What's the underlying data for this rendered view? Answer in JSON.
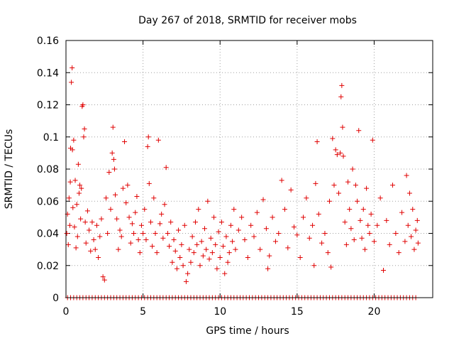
{
  "chart_data": {
    "type": "scatter",
    "title": "Day 267 of 2018, SRMTID for receiver mobs",
    "xlabel": "GPS time / hours",
    "ylabel": "SRMTID / TECUs",
    "xlim": [
      0,
      23.8
    ],
    "ylim": [
      0,
      0.16
    ],
    "grid": true,
    "marker": "+",
    "x_ticks": [
      0,
      5,
      10,
      15,
      20
    ],
    "x_tick_labels": [
      "0",
      "5",
      "10",
      "15",
      "20"
    ],
    "y_ticks": [
      0,
      0.02,
      0.04,
      0.06,
      0.08,
      0.1,
      0.12,
      0.14,
      0.16
    ],
    "y_tick_labels": [
      "0",
      "0.02",
      "0.04",
      "0.06",
      "0.08",
      "0.1",
      "0.12",
      "0.14",
      "0.16"
    ],
    "series": [
      {
        "name": "SRMTID",
        "color": "#e00000",
        "points": [
          [
            0.05,
            0.04
          ],
          [
            0.1,
            0.052
          ],
          [
            0.15,
            0.033
          ],
          [
            0.2,
            0.062
          ],
          [
            0.25,
            0.045
          ],
          [
            0.28,
            0.072
          ],
          [
            0.3,
            0.093
          ],
          [
            0.35,
            0.134
          ],
          [
            0.4,
            0.143
          ],
          [
            0.42,
            0.092
          ],
          [
            0.45,
            0.056
          ],
          [
            0.5,
            0.098
          ],
          [
            0.55,
            0.044
          ],
          [
            0.6,
            0.073
          ],
          [
            0.65,
            0.031
          ],
          [
            0.7,
            0.058
          ],
          [
            0.75,
            0.038
          ],
          [
            0.8,
            0.083
          ],
          [
            0.85,
            0.065
          ],
          [
            0.9,
            0.07
          ],
          [
            0.95,
            0.049
          ],
          [
            1.0,
            0.068
          ],
          [
            1.05,
            0.119
          ],
          [
            1.1,
            0.12
          ],
          [
            1.15,
            0.1
          ],
          [
            1.2,
            0.105
          ],
          [
            1.25,
            0.047
          ],
          [
            1.3,
            0.034
          ],
          [
            1.4,
            0.054
          ],
          [
            1.5,
            0.042
          ],
          [
            1.6,
            0.029
          ],
          [
            1.7,
            0.047
          ],
          [
            1.8,
            0.036
          ],
          [
            1.9,
            0.03
          ],
          [
            2.0,
            0.045
          ],
          [
            2.1,
            0.025
          ],
          [
            2.2,
            0.038
          ],
          [
            2.3,
            0.049
          ],
          [
            2.4,
            0.013
          ],
          [
            2.5,
            0.011
          ],
          [
            2.6,
            0.062
          ],
          [
            2.7,
            0.04
          ],
          [
            2.8,
            0.078
          ],
          [
            2.9,
            0.055
          ],
          [
            3.0,
            0.09
          ],
          [
            3.05,
            0.106
          ],
          [
            3.1,
            0.086
          ],
          [
            3.15,
            0.08
          ],
          [
            3.2,
            0.064
          ],
          [
            3.3,
            0.049
          ],
          [
            3.4,
            0.03
          ],
          [
            3.5,
            0.042
          ],
          [
            3.6,
            0.038
          ],
          [
            3.7,
            0.068
          ],
          [
            3.8,
            0.097
          ],
          [
            3.9,
            0.059
          ],
          [
            4.0,
            0.07
          ],
          [
            4.1,
            0.05
          ],
          [
            4.2,
            0.034
          ],
          [
            4.3,
            0.046
          ],
          [
            4.4,
            0.04
          ],
          [
            4.5,
            0.053
          ],
          [
            4.6,
            0.063
          ],
          [
            4.7,
            0.036
          ],
          [
            4.8,
            0.028
          ],
          [
            4.9,
            0.045
          ],
          [
            5.0,
            0.04
          ],
          [
            5.1,
            0.055
          ],
          [
            5.2,
            0.036
          ],
          [
            5.3,
            0.094
          ],
          [
            5.35,
            0.1
          ],
          [
            5.4,
            0.071
          ],
          [
            5.5,
            0.047
          ],
          [
            5.6,
            0.032
          ],
          [
            5.7,
            0.062
          ],
          [
            5.8,
            0.04
          ],
          [
            5.9,
            0.028
          ],
          [
            6.0,
            0.098
          ],
          [
            6.1,
            0.046
          ],
          [
            6.2,
            0.052
          ],
          [
            6.3,
            0.037
          ],
          [
            6.4,
            0.058
          ],
          [
            6.5,
            0.081
          ],
          [
            6.6,
            0.04
          ],
          [
            6.7,
            0.032
          ],
          [
            6.8,
            0.047
          ],
          [
            6.9,
            0.022
          ],
          [
            7.0,
            0.036
          ],
          [
            7.1,
            0.029
          ],
          [
            7.2,
            0.018
          ],
          [
            7.3,
            0.042
          ],
          [
            7.4,
            0.025
          ],
          [
            7.5,
            0.033
          ],
          [
            7.6,
            0.02
          ],
          [
            7.7,
            0.045
          ],
          [
            7.8,
            0.01
          ],
          [
            7.9,
            0.015
          ],
          [
            8.0,
            0.03
          ],
          [
            8.1,
            0.022
          ],
          [
            8.2,
            0.038
          ],
          [
            8.3,
            0.028
          ],
          [
            8.4,
            0.047
          ],
          [
            8.5,
            0.033
          ],
          [
            8.6,
            0.055
          ],
          [
            8.7,
            0.02
          ],
          [
            8.8,
            0.035
          ],
          [
            8.9,
            0.026
          ],
          [
            9.0,
            0.043
          ],
          [
            9.1,
            0.03
          ],
          [
            9.2,
            0.06
          ],
          [
            9.3,
            0.024
          ],
          [
            9.4,
            0.037
          ],
          [
            9.5,
            0.028
          ],
          [
            9.6,
            0.05
          ],
          [
            9.7,
            0.033
          ],
          [
            9.8,
            0.018
          ],
          [
            9.9,
            0.041
          ],
          [
            10.0,
            0.025
          ],
          [
            10.1,
            0.047
          ],
          [
            10.2,
            0.032
          ],
          [
            10.3,
            0.015
          ],
          [
            10.4,
            0.038
          ],
          [
            10.5,
            0.022
          ],
          [
            10.6,
            0.028
          ],
          [
            10.7,
            0.045
          ],
          [
            10.8,
            0.035
          ],
          [
            10.9,
            0.055
          ],
          [
            11.0,
            0.03
          ],
          [
            11.2,
            0.042
          ],
          [
            11.4,
            0.05
          ],
          [
            11.6,
            0.036
          ],
          [
            11.8,
            0.025
          ],
          [
            12.0,
            0.045
          ],
          [
            12.2,
            0.038
          ],
          [
            12.4,
            0.053
          ],
          [
            12.6,
            0.03
          ],
          [
            12.8,
            0.061
          ],
          [
            13.0,
            0.043
          ],
          [
            13.1,
            0.018
          ],
          [
            13.2,
            0.026
          ],
          [
            13.4,
            0.05
          ],
          [
            13.6,
            0.035
          ],
          [
            13.8,
            0.04
          ],
          [
            14.0,
            0.073
          ],
          [
            14.2,
            0.055
          ],
          [
            14.4,
            0.031
          ],
          [
            14.6,
            0.067
          ],
          [
            14.8,
            0.044
          ],
          [
            15.0,
            0.039
          ],
          [
            15.2,
            0.025
          ],
          [
            15.4,
            0.05
          ],
          [
            15.6,
            0.062
          ],
          [
            15.8,
            0.037
          ],
          [
            16.0,
            0.045
          ],
          [
            16.1,
            0.02
          ],
          [
            16.2,
            0.071
          ],
          [
            16.3,
            0.097
          ],
          [
            16.4,
            0.052
          ],
          [
            16.6,
            0.034
          ],
          [
            16.8,
            0.04
          ],
          [
            17.0,
            0.028
          ],
          [
            17.1,
            0.06
          ],
          [
            17.2,
            0.019
          ],
          [
            17.3,
            0.099
          ],
          [
            17.4,
            0.07
          ],
          [
            17.5,
            0.092
          ],
          [
            17.6,
            0.089
          ],
          [
            17.7,
            0.065
          ],
          [
            17.8,
            0.09
          ],
          [
            17.85,
            0.125
          ],
          [
            17.9,
            0.132
          ],
          [
            17.95,
            0.106
          ],
          [
            18.0,
            0.088
          ],
          [
            18.1,
            0.047
          ],
          [
            18.2,
            0.033
          ],
          [
            18.3,
            0.072
          ],
          [
            18.4,
            0.055
          ],
          [
            18.5,
            0.043
          ],
          [
            18.6,
            0.08
          ],
          [
            18.7,
            0.036
          ],
          [
            18.8,
            0.07
          ],
          [
            18.9,
            0.06
          ],
          [
            19.0,
            0.104
          ],
          [
            19.1,
            0.048
          ],
          [
            19.2,
            0.037
          ],
          [
            19.3,
            0.055
          ],
          [
            19.4,
            0.03
          ],
          [
            19.5,
            0.068
          ],
          [
            19.6,
            0.045
          ],
          [
            19.7,
            0.04
          ],
          [
            19.8,
            0.052
          ],
          [
            19.9,
            0.098
          ],
          [
            20.0,
            0.035
          ],
          [
            20.2,
            0.045
          ],
          [
            20.4,
            0.062
          ],
          [
            20.6,
            0.017
          ],
          [
            20.8,
            0.048
          ],
          [
            21.0,
            0.033
          ],
          [
            21.2,
            0.07
          ],
          [
            21.4,
            0.04
          ],
          [
            21.6,
            0.028
          ],
          [
            21.8,
            0.053
          ],
          [
            22.0,
            0.035
          ],
          [
            22.1,
            0.076
          ],
          [
            22.2,
            0.045
          ],
          [
            22.3,
            0.065
          ],
          [
            22.4,
            0.038
          ],
          [
            22.5,
            0.055
          ],
          [
            22.6,
            0.03
          ],
          [
            22.7,
            0.042
          ],
          [
            22.8,
            0.048
          ],
          [
            22.85,
            0.034
          ]
        ],
        "zero_x": [
          0.1,
          0.3,
          0.5,
          0.7,
          0.9,
          1.1,
          1.3,
          1.5,
          1.7,
          1.9,
          2.1,
          2.3,
          2.5,
          2.7,
          2.9,
          3.1,
          3.3,
          3.5,
          3.7,
          3.9,
          4.1,
          4.3,
          4.5,
          4.7,
          4.9,
          5.1,
          5.3,
          5.5,
          5.7,
          5.9,
          6.1,
          6.3,
          6.5,
          6.7,
          6.9,
          7.1,
          7.3,
          7.5,
          7.7,
          7.9,
          8.1,
          8.3,
          8.5,
          8.7,
          8.9,
          9.1,
          9.3,
          9.5,
          9.7,
          9.9,
          10.1,
          10.3,
          10.5,
          10.7,
          10.9,
          11.1,
          11.3,
          11.5,
          11.7,
          11.9,
          12.1,
          12.3,
          12.5,
          12.7,
          12.9,
          13.1,
          13.3,
          13.5,
          13.7,
          13.9,
          14.1,
          14.3,
          14.5,
          14.7,
          14.9,
          15.1,
          15.3,
          15.5,
          15.7,
          15.9,
          16.1,
          16.3,
          16.5,
          16.7,
          16.9,
          17.1,
          17.3,
          17.5,
          17.7,
          17.9,
          18.1,
          18.3,
          18.5,
          18.7,
          18.9,
          19.1,
          19.3,
          19.5,
          19.7,
          19.9,
          20.1,
          20.3,
          20.5,
          20.7,
          20.9,
          21.1,
          21.3,
          21.5,
          21.7,
          21.9,
          22.1,
          22.3,
          22.5,
          22.7
        ]
      }
    ]
  }
}
